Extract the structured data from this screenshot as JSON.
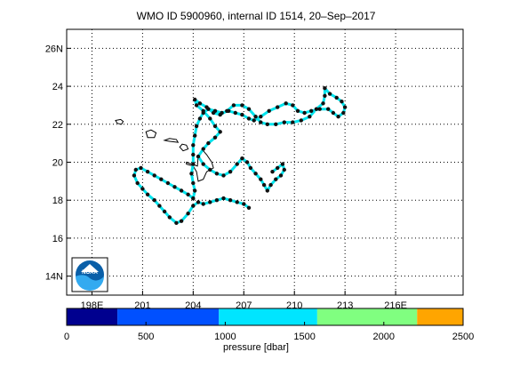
{
  "title": "WMO ID 5900960, internal ID 1514, 20–Sep–2017",
  "map": {
    "x_ticks": [
      {
        "lon": 198,
        "label": "198E"
      },
      {
        "lon": 201,
        "label": "201"
      },
      {
        "lon": 204,
        "label": "204"
      },
      {
        "lon": 207,
        "label": "207"
      },
      {
        "lon": 210,
        "label": "210"
      },
      {
        "lon": 213,
        "label": "213"
      },
      {
        "lon": 216,
        "label": "216E"
      }
    ],
    "y_ticks": [
      {
        "lat": 14,
        "label": "14N"
      },
      {
        "lat": 16,
        "label": "16"
      },
      {
        "lat": 18,
        "label": "18"
      },
      {
        "lat": 20,
        "label": "20"
      },
      {
        "lat": 22,
        "label": "22"
      },
      {
        "lat": 24,
        "label": "24"
      },
      {
        "lat": 26,
        "label": "26N"
      }
    ],
    "lon_range": [
      196.5,
      220.0
    ],
    "lat_range": [
      13.0,
      27.0
    ],
    "grid": "dotted",
    "logo": {
      "label": "NOAA"
    },
    "track_color": "#00e5ee",
    "point_color": "#111111",
    "track": [
      [
        207.3,
        17.6
      ],
      [
        207.0,
        17.8
      ],
      [
        206.6,
        17.9
      ],
      [
        206.2,
        18.0
      ],
      [
        205.8,
        18.1
      ],
      [
        205.4,
        18.0
      ],
      [
        205.0,
        17.9
      ],
      [
        204.6,
        17.8
      ],
      [
        204.3,
        17.9
      ],
      [
        204.0,
        17.7
      ],
      [
        203.7,
        17.3
      ],
      [
        203.3,
        16.9
      ],
      [
        203.0,
        16.8
      ],
      [
        202.6,
        17.1
      ],
      [
        202.3,
        17.4
      ],
      [
        202.0,
        17.7
      ],
      [
        201.7,
        18.0
      ],
      [
        201.3,
        18.3
      ],
      [
        201.0,
        18.6
      ],
      [
        200.7,
        18.9
      ],
      [
        200.5,
        19.3
      ],
      [
        200.6,
        19.6
      ],
      [
        200.9,
        19.7
      ],
      [
        201.3,
        19.5
      ],
      [
        201.7,
        19.3
      ],
      [
        202.1,
        19.1
      ],
      [
        202.5,
        18.9
      ],
      [
        202.9,
        18.7
      ],
      [
        203.3,
        18.5
      ],
      [
        203.7,
        18.3
      ],
      [
        204.0,
        18.1
      ],
      [
        204.1,
        18.5
      ],
      [
        204.0,
        18.9
      ],
      [
        203.9,
        19.4
      ],
      [
        204.0,
        19.9
      ],
      [
        204.0,
        20.4
      ],
      [
        204.0,
        20.9
      ],
      [
        204.1,
        21.4
      ],
      [
        204.2,
        21.9
      ],
      [
        204.4,
        22.3
      ],
      [
        204.6,
        22.6
      ],
      [
        204.9,
        22.8
      ],
      [
        205.3,
        22.7
      ],
      [
        205.7,
        22.6
      ],
      [
        206.1,
        22.7
      ],
      [
        206.5,
        22.6
      ],
      [
        206.9,
        22.5
      ],
      [
        207.3,
        22.3
      ],
      [
        207.6,
        22.2
      ],
      [
        208.0,
        22.4
      ],
      [
        208.5,
        22.7
      ],
      [
        209.0,
        22.9
      ],
      [
        209.5,
        23.1
      ],
      [
        209.9,
        23.0
      ],
      [
        210.2,
        22.7
      ],
      [
        210.6,
        22.6
      ],
      [
        211.0,
        22.7
      ],
      [
        211.5,
        22.8
      ],
      [
        212.0,
        22.8
      ],
      [
        212.3,
        22.6
      ],
      [
        212.6,
        22.4
      ],
      [
        212.9,
        22.6
      ],
      [
        213.0,
        22.9
      ],
      [
        212.8,
        23.2
      ],
      [
        212.5,
        23.4
      ],
      [
        212.1,
        23.6
      ],
      [
        211.8,
        23.9
      ],
      [
        211.8,
        23.5
      ],
      [
        211.7,
        23.1
      ],
      [
        211.3,
        22.8
      ],
      [
        210.9,
        22.4
      ],
      [
        210.4,
        22.2
      ],
      [
        209.9,
        22.1
      ],
      [
        209.4,
        22.1
      ],
      [
        208.9,
        22.0
      ],
      [
        208.4,
        22.0
      ],
      [
        208.0,
        22.1
      ],
      [
        207.7,
        22.4
      ],
      [
        207.3,
        22.8
      ],
      [
        206.9,
        23.0
      ],
      [
        206.4,
        23.0
      ],
      [
        206.0,
        22.7
      ],
      [
        205.6,
        22.5
      ],
      [
        205.2,
        22.6
      ],
      [
        204.8,
        22.9
      ],
      [
        204.4,
        23.1
      ],
      [
        204.1,
        23.3
      ],
      [
        204.2,
        23.0
      ],
      [
        204.6,
        22.7
      ],
      [
        205.0,
        22.3
      ],
      [
        205.3,
        21.9
      ],
      [
        205.6,
        21.6
      ],
      [
        205.3,
        21.3
      ],
      [
        204.9,
        21.0
      ],
      [
        204.6,
        20.7
      ],
      [
        204.3,
        20.3
      ],
      [
        204.6,
        19.9
      ],
      [
        205.0,
        19.6
      ],
      [
        205.4,
        19.4
      ],
      [
        205.8,
        19.3
      ],
      [
        206.2,
        19.5
      ],
      [
        206.6,
        19.9
      ],
      [
        206.9,
        20.2
      ],
      [
        207.2,
        20.0
      ],
      [
        207.4,
        19.7
      ],
      [
        207.7,
        19.4
      ],
      [
        208.0,
        19.1
      ],
      [
        208.2,
        18.8
      ],
      [
        208.4,
        18.5
      ],
      [
        208.6,
        18.8
      ],
      [
        208.9,
        19.1
      ],
      [
        209.2,
        19.3
      ],
      [
        209.4,
        19.6
      ],
      [
        209.3,
        19.9
      ],
      [
        209.0,
        19.7
      ],
      [
        208.7,
        19.5
      ]
    ],
    "islands": [
      [
        [
          199.4,
          22.2
        ],
        [
          199.5,
          22.05
        ],
        [
          199.75,
          22.0
        ],
        [
          199.85,
          22.15
        ],
        [
          199.7,
          22.25
        ]
      ],
      [
        [
          201.2,
          21.6
        ],
        [
          201.3,
          21.3
        ],
        [
          201.7,
          21.3
        ],
        [
          201.8,
          21.55
        ],
        [
          201.5,
          21.7
        ]
      ],
      [
        [
          202.3,
          21.15
        ],
        [
          202.6,
          21.1
        ],
        [
          203.1,
          21.05
        ],
        [
          203.0,
          21.2
        ],
        [
          202.6,
          21.25
        ]
      ],
      [
        [
          203.2,
          20.8
        ],
        [
          203.4,
          20.6
        ],
        [
          203.7,
          20.7
        ],
        [
          203.6,
          20.9
        ],
        [
          203.35,
          20.95
        ]
      ],
      [
        [
          203.6,
          20.0
        ],
        [
          203.9,
          19.9
        ],
        [
          204.25,
          19.8
        ],
        [
          204.3,
          20.35
        ],
        [
          204.6,
          20.6
        ],
        [
          204.8,
          20.4
        ],
        [
          205.1,
          20.0
        ],
        [
          205.2,
          19.7
        ],
        [
          204.8,
          19.5
        ],
        [
          204.6,
          19.1
        ],
        [
          204.3,
          19.0
        ],
        [
          204.2,
          19.5
        ],
        [
          204.0,
          19.8
        ],
        [
          203.6,
          19.9
        ]
      ]
    ]
  },
  "colorbar": {
    "label": "pressure [dbar]",
    "range": [
      0,
      2500
    ],
    "segments": [
      {
        "from": 0,
        "to": 320,
        "color": "#00008f"
      },
      {
        "from": 320,
        "to": 960,
        "color": "#0050ff"
      },
      {
        "from": 960,
        "to": 1580,
        "color": "#00e5ff"
      },
      {
        "from": 1580,
        "to": 2210,
        "color": "#80ff80"
      },
      {
        "from": 2210,
        "to": 2500,
        "color": "#ffa500"
      }
    ],
    "ticks": [
      {
        "value": 0,
        "label": "0"
      },
      {
        "value": 500,
        "label": "500"
      },
      {
        "value": 1000,
        "label": "1000"
      },
      {
        "value": 1500,
        "label": "1500"
      },
      {
        "value": 2000,
        "label": "2000"
      },
      {
        "value": 2500,
        "label": "2500"
      }
    ]
  }
}
